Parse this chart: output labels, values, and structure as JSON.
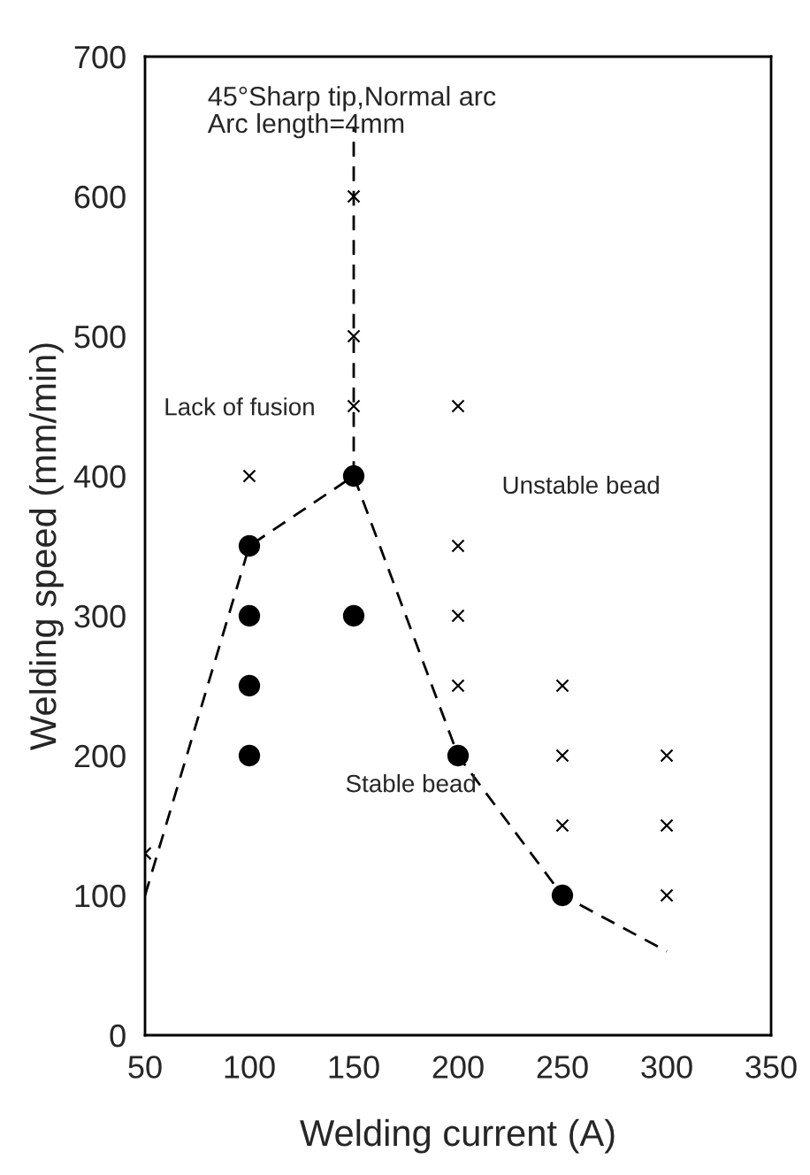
{
  "chart_data": {
    "type": "scatter",
    "xlabel": "Welding current (A)",
    "ylabel": "Welding speed (mm/min)",
    "xlim": [
      50,
      350
    ],
    "ylim": [
      0,
      700
    ],
    "xticks": [
      50,
      100,
      150,
      200,
      250,
      300,
      350
    ],
    "yticks": [
      0,
      100,
      200,
      300,
      400,
      500,
      600,
      700
    ],
    "grid": false,
    "legend": false,
    "series": [
      {
        "type": "line",
        "x": [
          50,
          100,
          150,
          200,
          250,
          300
        ],
        "values": [
          100,
          350,
          400,
          200,
          100,
          60
        ],
        "color": "#000000",
        "marker": "none",
        "line_style": "dashed"
      },
      {
        "type": "line",
        "x": [
          150,
          150
        ],
        "values": [
          400,
          650
        ],
        "color": "#000000",
        "marker": "none",
        "line_style": "dashed"
      },
      {
        "x": [
          100,
          100,
          100,
          100,
          150,
          150,
          200,
          250
        ],
        "values": [
          350,
          300,
          250,
          200,
          400,
          300,
          200,
          100
        ],
        "color": "#000000",
        "marker": "circle"
      },
      {
        "x": [
          50,
          100,
          150,
          150,
          150,
          200,
          200,
          200,
          200,
          250,
          250,
          250,
          300,
          300,
          300
        ],
        "values": [
          130,
          400,
          600,
          500,
          450,
          450,
          350,
          300,
          250,
          250,
          200,
          150,
          200,
          150,
          100
        ],
        "color": "#000000",
        "marker": "cross"
      }
    ],
    "annotations": [
      "45°Sharp tip,Normal arc\nArc length=4mm",
      "Lack of fusion",
      "Unstable bead",
      "Stable bead"
    ]
  }
}
